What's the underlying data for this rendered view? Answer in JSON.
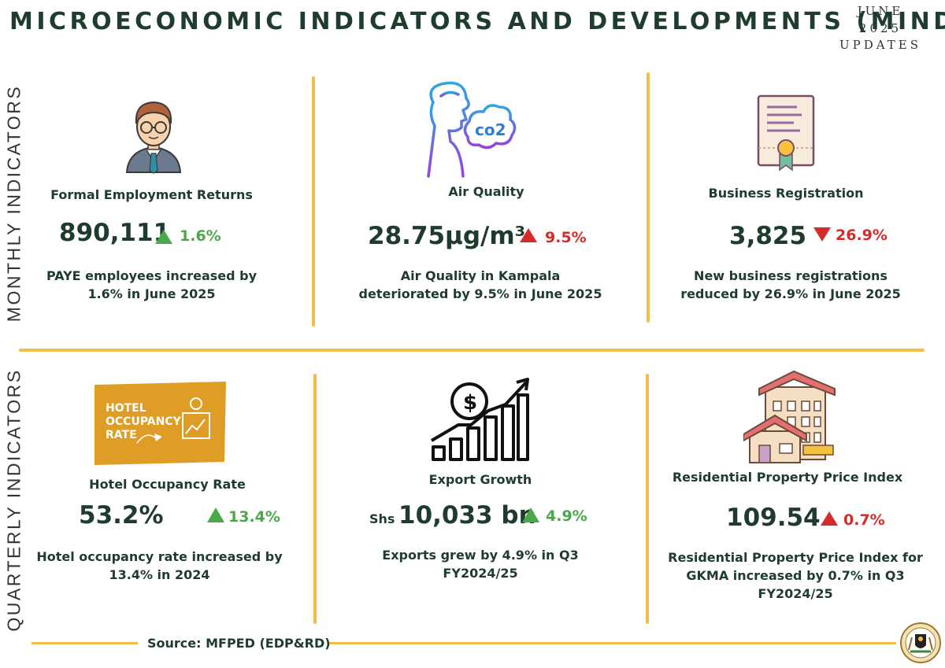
{
  "header": {
    "title": "MICROECONOMIC INDICATORS AND DEVELOPMENTS (MIND)",
    "update_lines": [
      "JUNE",
      "2025",
      "UPDATES"
    ]
  },
  "sections": {
    "monthly": "MONTHLY INDICATORS",
    "quarterly": "QUARTERLY INDICATORS"
  },
  "monthly": [
    {
      "label": "Formal Employment Returns",
      "value": "890,111",
      "change": "1.6%",
      "direction": "up",
      "desc": [
        "PAYE employees increased by",
        "1.6% in June 2025"
      ]
    },
    {
      "label": "Air Quality",
      "value": "28.75μg/m³",
      "change": "9.5%",
      "direction": "up",
      "desc": [
        "Air Quality in Kampala",
        "deteriorated by 9.5% in June 2025"
      ],
      "icon_text": "co2"
    },
    {
      "label": "Business Registration",
      "value": "3,825",
      "change": "26.9%",
      "direction": "down",
      "desc": [
        "New business registrations",
        "reduced by 26.9% in June 2025"
      ]
    }
  ],
  "quarterly": [
    {
      "label": "Hotel Occupancy Rate",
      "value": "53.2%",
      "change": "13.4%",
      "direction": "up",
      "desc": [
        "Hotel occupancy rate increased by",
        "13.4% in 2024"
      ],
      "icon_text": [
        "HOTEL",
        "OCCUPANCY",
        "RATE"
      ]
    },
    {
      "label": "Export Growth",
      "prefix": "Shs",
      "value": "10,033 bn",
      "change": "4.9%",
      "direction": "up",
      "desc": [
        "Exports grew by 4.9% in Q3",
        "FY2024/25"
      ],
      "icon_text": "$"
    },
    {
      "label": "Residential Property Price Index",
      "value": "109.54",
      "change": "0.7%",
      "direction": "up",
      "desc": [
        "Residential Property Price Index for",
        "GKMA increased by 0.7% in Q3",
        "FY2024/25"
      ]
    }
  ],
  "footer": {
    "source": "Source: MFPED (EDP&RD)"
  },
  "colors": {
    "accent": "#f3be47",
    "text": "#1e3b2e",
    "up": "#4aa84a",
    "down": "#d52b2b",
    "hotel_banner": "#e09d25"
  },
  "icons": [
    "man-avatar-icon",
    "air-quality-co2-icon",
    "certificate-icon",
    "hotel-occupancy-banner-icon",
    "export-growth-chart-icon",
    "residential-buildings-icon",
    "uganda-coat-of-arms-icon"
  ]
}
